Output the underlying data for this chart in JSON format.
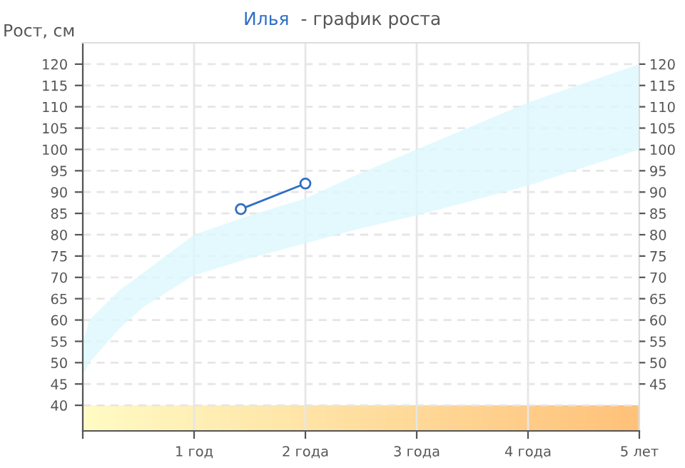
{
  "chart_data": {
    "type": "line",
    "title": "- график роста",
    "ylabel": "Рост, см",
    "series": [
      {
        "type": "area",
        "color": "#dcf7fd",
        "x": [
          0,
          0.06,
          0.33,
          0.54,
          1,
          1.5,
          2,
          2.5,
          3,
          4,
          5
        ],
        "values": [
          null,
          null,
          null,
          null,
          null,
          null,
          null,
          null,
          null,
          null,
          null
        ],
        "lower": [
          47,
          50,
          58,
          63,
          70.5,
          74.5,
          78,
          81.5,
          84.5,
          91.5,
          100
        ],
        "upper": [
          55,
          60,
          67,
          71,
          80,
          84.5,
          88.5,
          94.5,
          100,
          111,
          120
        ]
      },
      {
        "name": "Илья",
        "color": "#2f6fc4",
        "x": [
          1.42,
          2
        ],
        "values": [
          86,
          92
        ]
      }
    ],
    "marker": "circle",
    "line_style": "solid",
    "xlim": [
      0,
      5
    ],
    "xticks": [
      {
        "value": 0,
        "label": null
      },
      {
        "value": 1,
        "label": "1 год"
      },
      {
        "value": 2,
        "label": "2 года"
      },
      {
        "value": 3,
        "label": "3 года"
      },
      {
        "value": 4,
        "label": "4 года"
      },
      {
        "value": 5,
        "label": "5 лет"
      }
    ],
    "ylim": [
      34,
      125
    ],
    "yticks": [
      40,
      45,
      50,
      55,
      60,
      65,
      70,
      75,
      80,
      85,
      90,
      95,
      100,
      105,
      110,
      115,
      120
    ],
    "y2lim": [
      34,
      125
    ],
    "y2ticks": [
      45,
      50,
      55,
      60,
      65,
      70,
      75,
      80,
      85,
      90,
      95,
      100,
      105,
      110,
      115,
      120
    ],
    "grid": true,
    "legend": "top"
  }
}
